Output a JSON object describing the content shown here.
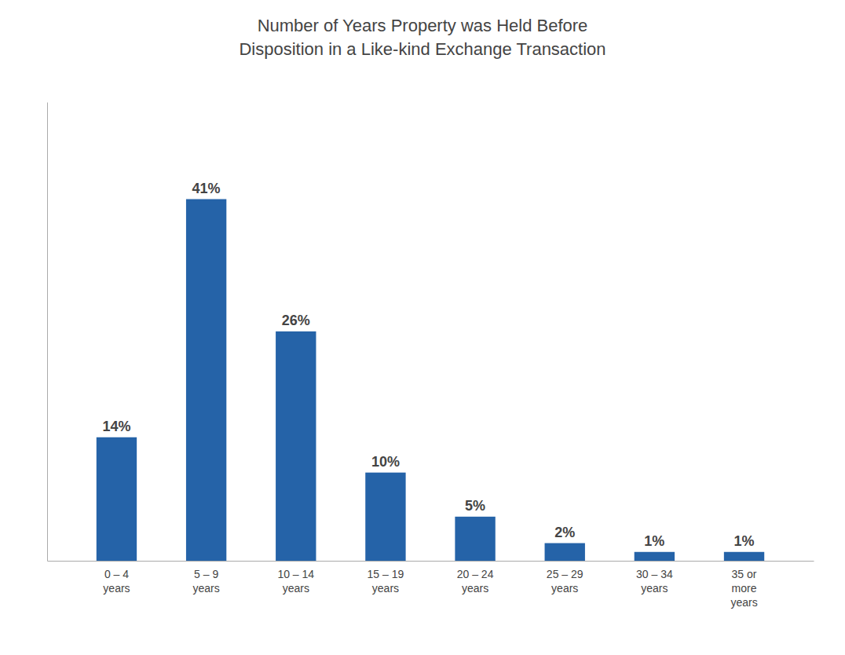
{
  "chart_data": {
    "type": "bar",
    "title": "Number of Years Property was Held Before\nDisposition in a Like-kind Exchange Transaction",
    "categories": [
      "0 – 4\nyears",
      "5 – 9\nyears",
      "10 – 14\nyears",
      "15 – 19\nyears",
      "20 – 24\nyears",
      "25 – 29\nyears",
      "30 – 34\nyears",
      "35 or\nmore\nyears"
    ],
    "values": [
      14,
      41,
      26,
      10,
      5,
      2,
      1,
      1
    ],
    "value_labels": [
      "14%",
      "41%",
      "26%",
      "10%",
      "5%",
      "2%",
      "1%",
      "1%"
    ],
    "color": "#2563a8",
    "ylim": [
      0,
      52
    ],
    "grid": false,
    "data_labels": true,
    "tick_labels": "x"
  }
}
